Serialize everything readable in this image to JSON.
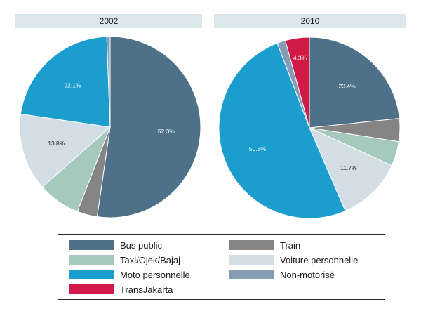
{
  "chart_data": [
    {
      "type": "pie",
      "title": "2002",
      "categories": [
        "Bus public",
        "Train",
        "Taxi/Ojek/Bajaj",
        "Voiture personnelle",
        "Moto personnelle",
        "Non-motorisé",
        "TransJakarta"
      ],
      "values": [
        52.3,
        3.6,
        7.6,
        13.8,
        22.1,
        0.6,
        0.0
      ],
      "labels": [
        "52.3%",
        "",
        "",
        "13.8%",
        "22.1%",
        "",
        ""
      ],
      "start_angle": "12 o'clock, clockwise"
    },
    {
      "type": "pie",
      "title": "2010",
      "categories": [
        "Bus public",
        "Train",
        "Taxi/Ojek/Bajaj",
        "Voiture personnelle",
        "Moto personnelle",
        "Non-motorisé",
        "TransJakarta"
      ],
      "values": [
        23.4,
        4.1,
        4.4,
        11.7,
        50.8,
        1.5,
        4.3
      ],
      "labels": [
        "23.4%",
        "",
        "",
        "11.7%",
        "50.8%",
        "",
        "4.3%"
      ],
      "start_angle": "12 o'clock, clockwise"
    }
  ],
  "colors": {
    "Bus public": "#4e7189",
    "Train": "#858585",
    "Taxi/Ojek/Bajaj": "#a6c9bd",
    "Voiture personnelle": "#d3dde6",
    "Moto personnelle": "#1b9ecd",
    "Non-motorisé": "#869cb4",
    "TransJakarta": "#d11a48"
  },
  "legend": {
    "placement": "bottom",
    "items": [
      {
        "label": "Bus public",
        "color": "#4e7189"
      },
      {
        "label": "Train",
        "color": "#858585"
      },
      {
        "label": "Taxi/Ojek/Bajaj",
        "color": "#a6c9bd"
      },
      {
        "label": "Voiture personnelle",
        "color": "#d3dde6"
      },
      {
        "label": "Moto personnelle",
        "color": "#1b9ecd"
      },
      {
        "label": "Non-motorisé",
        "color": "#869cb4"
      },
      {
        "label": "TransJakarta",
        "color": "#d11a48"
      }
    ]
  }
}
